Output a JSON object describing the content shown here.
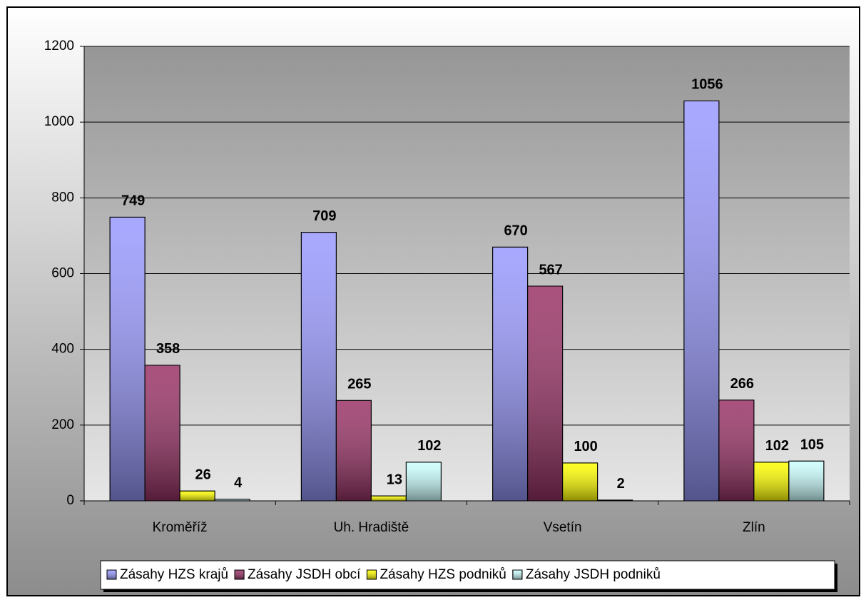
{
  "chart_data": {
    "type": "bar",
    "categories": [
      "Kroměříž",
      "Uh. Hradiště",
      "Vsetín",
      "Zlín"
    ],
    "series": [
      {
        "name": "Zásahy HZS krajů",
        "color": "#9999ff",
        "values": [
          749,
          709,
          670,
          1056
        ]
      },
      {
        "name": "Zásahy JSDH obcí",
        "color": "#993366",
        "values": [
          358,
          265,
          567,
          266
        ]
      },
      {
        "name": "Zásahy HZS podniků",
        "color": "#ffff00",
        "values": [
          26,
          13,
          100,
          102
        ]
      },
      {
        "name": "Zásahy JSDH podniků",
        "color": "#ccffff",
        "values": [
          4,
          102,
          2,
          105
        ]
      }
    ],
    "ylim": [
      0,
      1200
    ],
    "yticks": [
      0,
      200,
      400,
      600,
      800,
      1000,
      1200
    ],
    "grid": true,
    "legend": "bottom"
  }
}
